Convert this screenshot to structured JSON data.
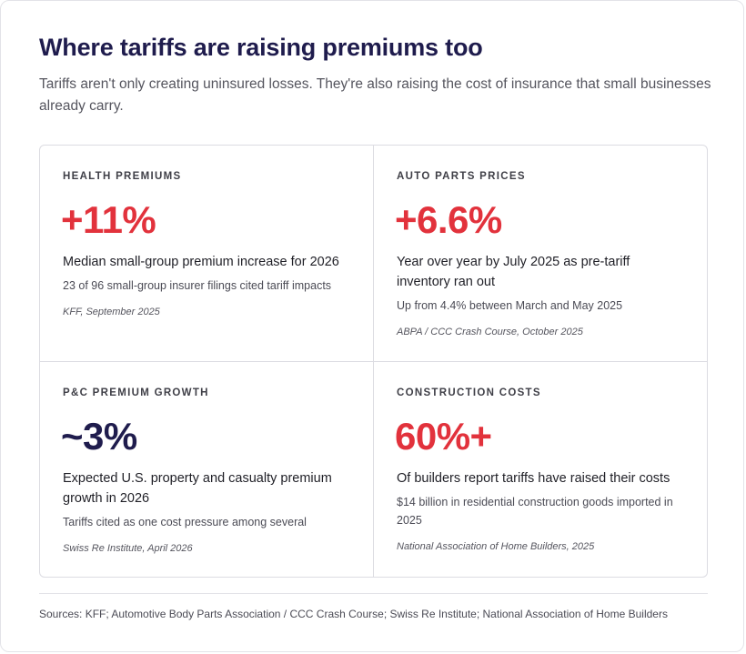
{
  "title": "Where tariffs are raising premiums too",
  "subtitle": "Tariffs aren't only creating uninsured losses. They're also raising the cost of insurance that small businesses already carry.",
  "colors": {
    "accent_red": "#e2323c",
    "navy": "#1f1c4d"
  },
  "stats": [
    {
      "label": "HEALTH PREMIUMS",
      "value": "+11%",
      "value_color": "red",
      "description": "Median small-group premium increase for 2026",
      "note": "23 of 96 small-group insurer filings cited tariff impacts",
      "source": "KFF, September 2025"
    },
    {
      "label": "AUTO PARTS PRICES",
      "value": "+6.6%",
      "value_color": "red",
      "description": "Year over year by July 2025 as pre-tariff inventory ran out",
      "note": "Up from 4.4% between March and May 2025",
      "source": "ABPA / CCC Crash Course, October 2025"
    },
    {
      "label": "P&C PREMIUM GROWTH",
      "value": "~3%",
      "value_color": "navy",
      "description": "Expected U.S. property and casualty premium growth in 2026",
      "note": "Tariffs cited as one cost pressure among several",
      "source": "Swiss Re Institute, April 2026"
    },
    {
      "label": "CONSTRUCTION COSTS",
      "value": "60%+",
      "value_color": "red",
      "description": "Of builders report tariffs have raised their costs",
      "note": "$14 billion in residential construction goods imported in 2025",
      "source": "National Association of Home Builders, 2025"
    }
  ],
  "footer": "Sources: KFF; Automotive Body Parts Association / CCC Crash Course; Swiss Re Institute; National Association of Home Builders"
}
